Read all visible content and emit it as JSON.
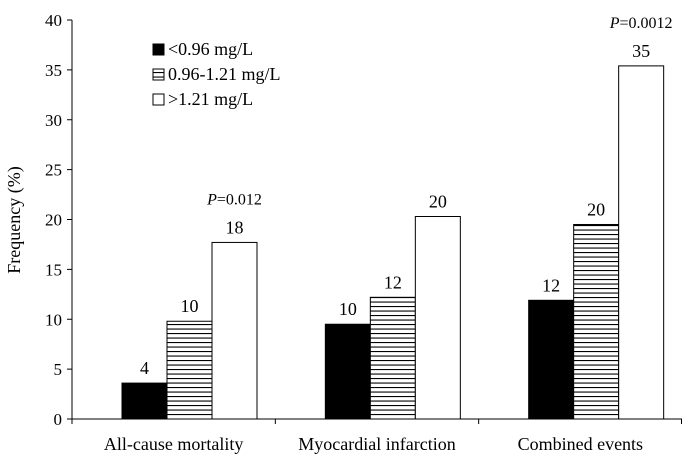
{
  "chart_data": {
    "type": "bar",
    "title": "",
    "xlabel": "",
    "ylabel": "Frequency (%)",
    "ylim": [
      0,
      40
    ],
    "yticks": [
      0,
      5,
      10,
      15,
      20,
      25,
      30,
      35,
      40
    ],
    "grid": false,
    "legend_position": "top-left",
    "categories": [
      "All-cause mortality",
      "Myocardial infarction",
      "Combined events"
    ],
    "series": [
      {
        "name": "<0.96 mg/L",
        "pattern": "solid-black",
        "values": [
          3.6,
          9.5,
          11.9
        ],
        "labels": [
          "4",
          "10",
          "12"
        ]
      },
      {
        "name": "0.96-1.21 mg/L",
        "pattern": "horizontal-stripes",
        "values": [
          9.8,
          12.2,
          19.5
        ],
        "labels": [
          "10",
          "12",
          "20"
        ]
      },
      {
        "name": ">1.21 mg/L",
        "pattern": "white",
        "values": [
          17.7,
          20.3,
          35.4
        ],
        "labels": [
          "18",
          "20",
          "35"
        ]
      }
    ],
    "annotations": [
      {
        "category_index": 0,
        "p_label": "P",
        "p_value": "=0.012"
      },
      {
        "category_index": 2,
        "p_label": "P",
        "p_value": "=0.0012"
      }
    ]
  }
}
